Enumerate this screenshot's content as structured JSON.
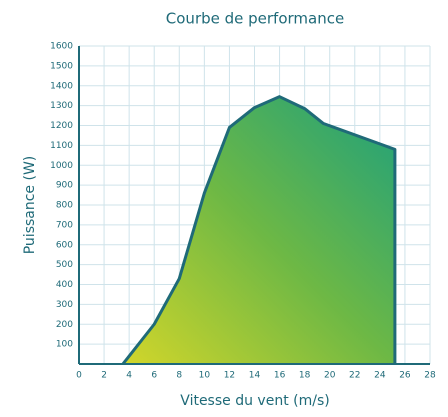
{
  "chart_data": {
    "type": "area",
    "title": "Courbe de performance",
    "x_label": "Vitesse du vent (m/s)",
    "y_label": "Puissance (W)",
    "x": [
      3.5,
      6,
      8,
      10,
      12,
      14,
      16,
      18,
      19.5,
      25.2
    ],
    "values": [
      0,
      200,
      430,
      860,
      1190,
      1290,
      1345,
      1285,
      1210,
      1080
    ],
    "color": "#1f6a78",
    "xlim": [
      0,
      28
    ],
    "xticks": [
      0,
      2,
      4,
      6,
      8,
      10,
      12,
      14,
      16,
      18,
      20,
      22,
      24,
      26,
      28
    ],
    "ylim": [
      0,
      1600
    ],
    "yticks": [
      100,
      200,
      300,
      400,
      500,
      600,
      700,
      800,
      900,
      1000,
      1100,
      1200,
      1300,
      1400,
      1500,
      1600
    ],
    "grid": true
  }
}
